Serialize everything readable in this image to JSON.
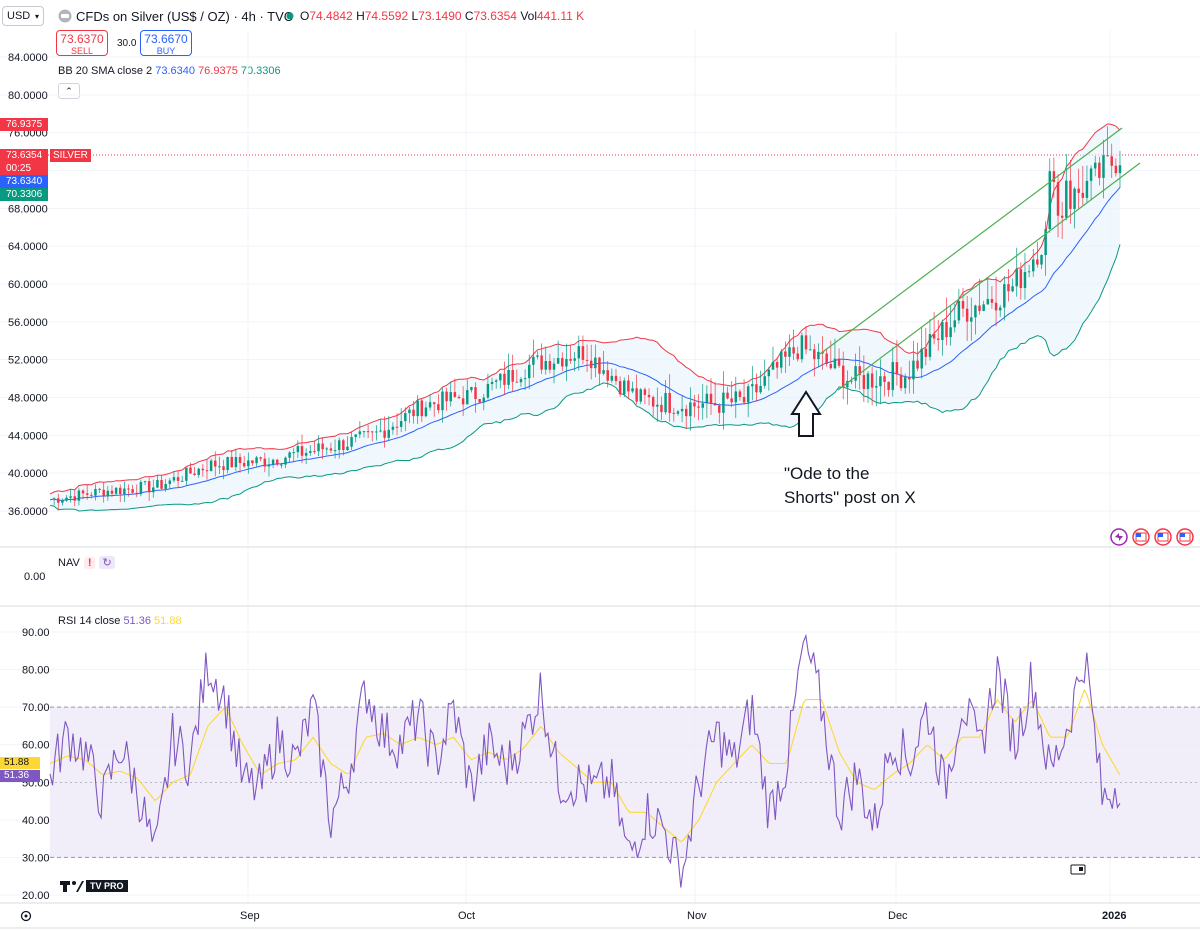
{
  "header": {
    "currency": "USD",
    "title": "CFDs on Silver (US$ / OZ) · 4h · TVC",
    "open_label": "O",
    "open": "74.4842",
    "high_label": "H",
    "high": "74.5592",
    "low_label": "L",
    "low": "73.1490",
    "close_label": "C",
    "close": "73.6354",
    "vol_label": "Vol",
    "vol": "441.11 K"
  },
  "trade": {
    "sell_price": "73.6370",
    "sell_label": "SELL",
    "spread": "30.0",
    "buy_price": "73.6670",
    "buy_label": "BUY"
  },
  "bb": {
    "label": "BB 20 SMA close 2",
    "basis": "73.6340",
    "upper": "76.9375",
    "lower": "70.3306"
  },
  "price_tags": {
    "upper": "76.9375",
    "price": "73.6354",
    "symbol": "SILVER",
    "countdown": "00:25",
    "basis": "73.6340",
    "lower": "70.3306"
  },
  "nav": {
    "label": "NAV",
    "value": "0.00"
  },
  "rsi": {
    "label": "RSI 14 close",
    "value": "51.36",
    "ma": "51.88"
  },
  "x_axis": {
    "labels": [
      "Sep",
      "Oct",
      "Nov",
      "Dec",
      "2026"
    ]
  },
  "annotation": {
    "line1": "\"Ode to the",
    "line2": "Shorts\" post on X"
  },
  "logo": "TV PRO",
  "colors": {
    "up": "#089981",
    "down": "#f23645",
    "bb_basis": "#2962ff",
    "bb_upper": "#f23645",
    "bb_lower": "#089981",
    "channel": "#4caf50",
    "rsi": "#7e57c2",
    "rsi_ma": "#fdd835",
    "rsi_band": "#ede7f6"
  },
  "chart_data": [
    {
      "type": "candlestick",
      "title": "CFDs on Silver (US$ / OZ) · 4h · TVC",
      "ylim": [
        34,
        86
      ],
      "y_ticks": [
        36,
        40,
        44,
        48,
        52,
        56,
        60,
        64,
        68,
        72,
        76,
        80,
        84
      ],
      "x_categories": [
        "Sep",
        "Oct",
        "Nov",
        "Dec",
        "2026"
      ],
      "series": [
        {
          "name": "price",
          "x": [
            0,
            5,
            10,
            15,
            20,
            25,
            30,
            35,
            40,
            45,
            50,
            55,
            60,
            65,
            70,
            75,
            80,
            85,
            90,
            95,
            100
          ],
          "values": [
            37.2,
            38.1,
            38.6,
            40.9,
            41.3,
            42.5,
            43.8,
            47.2,
            48.4,
            51.5,
            52.9,
            47.8,
            47.2,
            47.6,
            53.4,
            49.8,
            50.5,
            57.0,
            59.6,
            68.5,
            73.6
          ]
        },
        {
          "name": "BB 20 SMA close 2",
          "basis_last": 73.634,
          "upper_last": 76.9375,
          "lower_last": 70.3306
        }
      ]
    },
    {
      "type": "line",
      "title": "RSI 14 close",
      "ylim": [
        20,
        90
      ],
      "y_ticks": [
        20,
        30,
        40,
        50,
        60,
        70,
        80,
        90
      ],
      "bands": [
        30,
        70
      ],
      "series": [
        {
          "name": "RSI",
          "values": [
            52,
            63,
            58,
            45,
            60,
            48,
            30,
            62,
            55,
            82,
            72,
            50,
            48,
            62,
            55,
            70,
            40,
            52,
            75,
            63,
            60,
            68,
            55,
            70,
            48,
            60,
            54,
            62,
            75,
            50,
            50,
            48,
            50,
            30,
            42,
            38,
            25,
            50,
            63,
            55,
            70,
            42,
            55,
            88,
            70,
            42,
            52,
            38,
            62,
            55,
            70,
            48,
            72,
            58,
            80,
            60,
            78,
            52,
            65,
            84,
            45,
            51
          ]
        },
        {
          "name": "RSI MA",
          "values": [
            55,
            57,
            56,
            52,
            53,
            51,
            45,
            50,
            52,
            65,
            70,
            60,
            52,
            55,
            56,
            62,
            55,
            52,
            62,
            63,
            60,
            62,
            60,
            62,
            56,
            58,
            56,
            59,
            65,
            58,
            54,
            50,
            50,
            42,
            42,
            38,
            34,
            40,
            50,
            55,
            60,
            55,
            55,
            72,
            72,
            58,
            50,
            48,
            52,
            55,
            60,
            56,
            62,
            62,
            72,
            66,
            72,
            62,
            62,
            75,
            60,
            51.88
          ]
        }
      ]
    }
  ]
}
